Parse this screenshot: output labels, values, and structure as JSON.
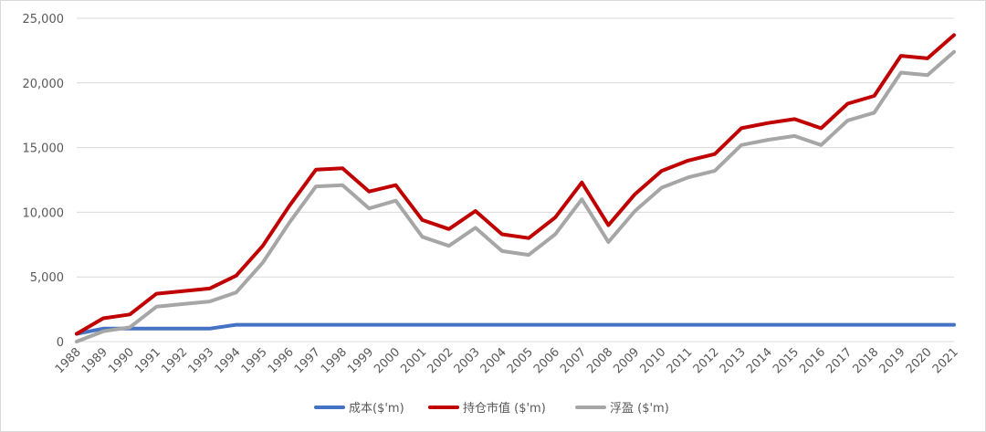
{
  "chart_data": {
    "type": "line",
    "title": "",
    "xlabel": "",
    "ylabel": "",
    "ylim": [
      0,
      25000
    ],
    "yticks": [
      0,
      5000,
      10000,
      15000,
      20000,
      25000
    ],
    "ytick_labels": [
      "0",
      "5,000",
      "10,000",
      "15,000",
      "20,000",
      "25,000"
    ],
    "grid": "horizontal",
    "legend_position": "bottom",
    "categories": [
      "1988",
      "1989",
      "1990",
      "1991",
      "1992",
      "1993",
      "1994",
      "1995",
      "1996",
      "1997",
      "1998",
      "1999",
      "2000",
      "2001",
      "2002",
      "2003",
      "2004",
      "2005",
      "2006",
      "2007",
      "2008",
      "2009",
      "2010",
      "2011",
      "2012",
      "2013",
      "2014",
      "2015",
      "2016",
      "2017",
      "2018",
      "2019",
      "2020",
      "2021"
    ],
    "series": [
      {
        "name": "成本($'m)",
        "color": "#4472c4",
        "values": [
          600,
          1000,
          1000,
          1000,
          1000,
          1000,
          1300,
          1300,
          1300,
          1300,
          1300,
          1300,
          1300,
          1300,
          1300,
          1300,
          1300,
          1300,
          1300,
          1300,
          1300,
          1300,
          1300,
          1300,
          1300,
          1300,
          1300,
          1300,
          1300,
          1300,
          1300,
          1300,
          1300,
          1300
        ]
      },
      {
        "name": "持仓市值 ($'m)",
        "color": "#c00000",
        "values": [
          600,
          1800,
          2100,
          3700,
          3900,
          4100,
          5100,
          7400,
          10500,
          13300,
          13400,
          11600,
          12100,
          9400,
          8700,
          10100,
          8300,
          8000,
          9600,
          12300,
          9000,
          11400,
          13200,
          14000,
          14500,
          16500,
          16900,
          17200,
          16500,
          18400,
          19000,
          22100,
          21900,
          23700
        ]
      },
      {
        "name": "浮盈 ($'m)",
        "color": "#a6a6a6",
        "values": [
          0,
          800,
          1100,
          2700,
          2900,
          3100,
          3800,
          6100,
          9200,
          12000,
          12100,
          10300,
          10900,
          8100,
          7400,
          8800,
          7000,
          6700,
          8300,
          11000,
          7700,
          10100,
          11900,
          12700,
          13200,
          15200,
          15600,
          15900,
          15200,
          17100,
          17700,
          20800,
          20600,
          22400
        ]
      }
    ]
  }
}
